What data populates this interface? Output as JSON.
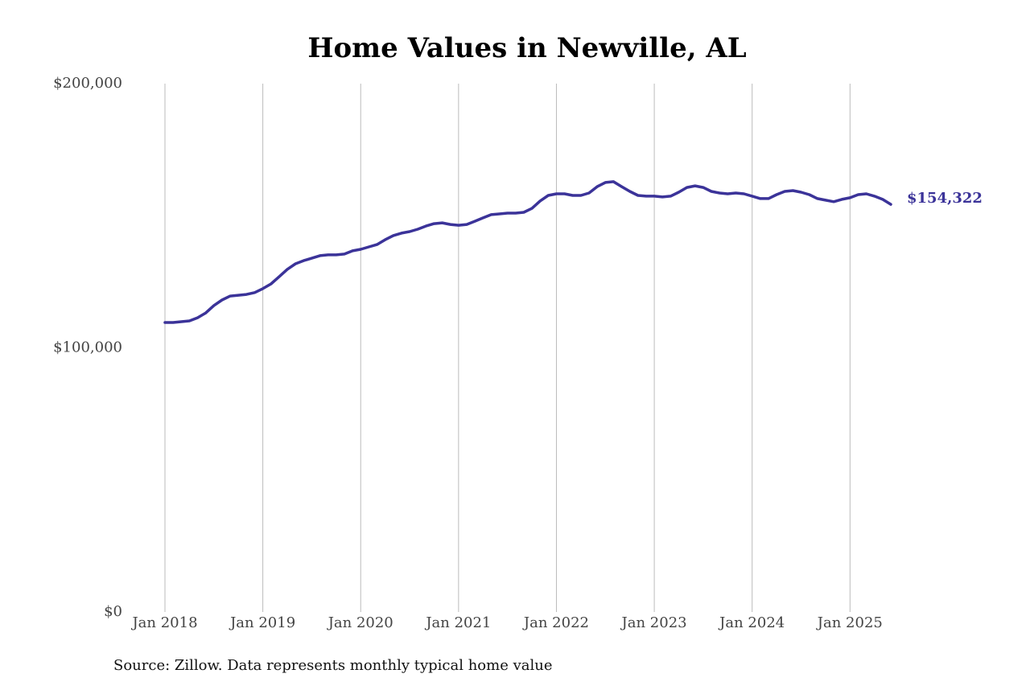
{
  "chart_data": {
    "type": "line",
    "title": "Home Values in Newville, AL",
    "source": "Source: Zillow. Data represents monthly typical home value",
    "x": [
      "2018-01",
      "2018-02",
      "2018-03",
      "2018-04",
      "2018-05",
      "2018-06",
      "2018-07",
      "2018-08",
      "2018-09",
      "2018-10",
      "2018-11",
      "2018-12",
      "2019-01",
      "2019-02",
      "2019-03",
      "2019-04",
      "2019-05",
      "2019-06",
      "2019-07",
      "2019-08",
      "2019-09",
      "2019-10",
      "2019-11",
      "2019-12",
      "2020-01",
      "2020-02",
      "2020-03",
      "2020-04",
      "2020-05",
      "2020-06",
      "2020-07",
      "2020-08",
      "2020-09",
      "2020-10",
      "2020-11",
      "2020-12",
      "2021-01",
      "2021-02",
      "2021-03",
      "2021-04",
      "2021-05",
      "2021-06",
      "2021-07",
      "2021-08",
      "2021-09",
      "2021-10",
      "2021-11",
      "2021-12",
      "2022-01",
      "2022-02",
      "2022-03",
      "2022-04",
      "2022-05",
      "2022-06",
      "2022-07",
      "2022-08",
      "2022-09",
      "2022-10",
      "2022-11",
      "2022-12",
      "2023-01",
      "2023-02",
      "2023-03",
      "2023-04",
      "2023-05",
      "2023-06",
      "2023-07",
      "2023-08",
      "2023-09",
      "2023-10",
      "2023-11",
      "2023-12",
      "2024-01",
      "2024-02",
      "2024-03",
      "2024-04",
      "2024-05",
      "2024-06",
      "2024-07",
      "2024-08",
      "2024-09",
      "2024-10",
      "2024-11",
      "2024-12",
      "2025-01",
      "2025-02",
      "2025-03",
      "2025-04",
      "2025-05",
      "2025-06"
    ],
    "series": [
      {
        "color": "#3b3399",
        "values": [
          109600,
          109600,
          109900,
          110200,
          111400,
          113200,
          116000,
          118100,
          119600,
          119900,
          120200,
          120900,
          122400,
          124200,
          126900,
          129700,
          131800,
          133000,
          133900,
          134900,
          135200,
          135200,
          135500,
          136700,
          137300,
          138200,
          139100,
          140900,
          142500,
          143400,
          144000,
          144900,
          146100,
          147000,
          147300,
          146700,
          146400,
          146700,
          147900,
          149200,
          150400,
          150700,
          151000,
          151000,
          151300,
          152800,
          155600,
          157700,
          158300,
          158300,
          157700,
          157700,
          158600,
          161000,
          162600,
          162900,
          161000,
          159200,
          157700,
          157400,
          157400,
          157100,
          157400,
          158900,
          160700,
          161300,
          160700,
          159200,
          158600,
          158300,
          158600,
          158300,
          157400,
          156500,
          156500,
          158000,
          159200,
          159500,
          158900,
          158000,
          156500,
          155900,
          155300,
          156200,
          156800,
          158000,
          158300,
          157400,
          156200,
          154322
        ],
        "value_labels": [
          null,
          null,
          null,
          null,
          null,
          null,
          null,
          null,
          null,
          null,
          null,
          null,
          null,
          null,
          null,
          null,
          null,
          null,
          null,
          null,
          null,
          null,
          null,
          null,
          null,
          null,
          null,
          null,
          null,
          null,
          null,
          null,
          null,
          null,
          null,
          null,
          null,
          null,
          null,
          null,
          null,
          null,
          null,
          null,
          null,
          null,
          null,
          null,
          null,
          null,
          null,
          null,
          null,
          null,
          null,
          null,
          null,
          null,
          null,
          null,
          null,
          null,
          null,
          null,
          null,
          null,
          null,
          null,
          null,
          null,
          null,
          null,
          null,
          null,
          null,
          null,
          null,
          null,
          null,
          null,
          null,
          null,
          null,
          null,
          null,
          null,
          null,
          null,
          null,
          "$154,322"
        ]
      }
    ],
    "xlim": [
      "2018-01",
      "2025-06"
    ],
    "xticks": [
      {
        "value": "2018-01",
        "label": "Jan 2018"
      },
      {
        "value": "2019-01",
        "label": "Jan 2019"
      },
      {
        "value": "2020-01",
        "label": "Jan 2020"
      },
      {
        "value": "2021-01",
        "label": "Jan 2021"
      },
      {
        "value": "2022-01",
        "label": "Jan 2022"
      },
      {
        "value": "2023-01",
        "label": "Jan 2023"
      },
      {
        "value": "2024-01",
        "label": "Jan 2024"
      },
      {
        "value": "2025-01",
        "label": "Jan 2025"
      }
    ],
    "ylim": [
      0,
      200000
    ],
    "yticks": [
      {
        "value": 0,
        "label": "$0"
      },
      {
        "value": 100000,
        "label": "$100,000"
      },
      {
        "value": 200000,
        "label": "$200,000"
      }
    ],
    "grid": "x"
  }
}
